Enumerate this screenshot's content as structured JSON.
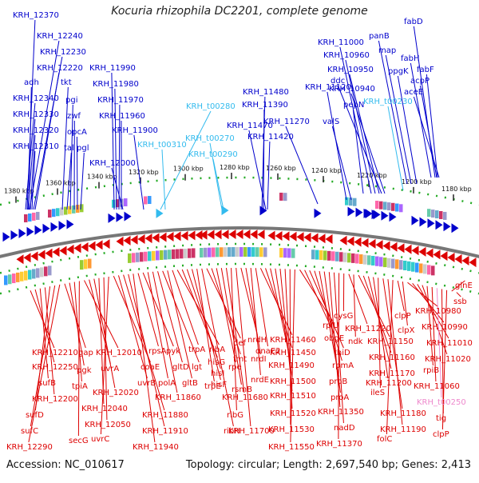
{
  "title": "Kocuria rhizophila DC2201, complete genome",
  "footer": {
    "accession": "Accession: NC_010617",
    "summary": "Topology: circular; Length: 2,697,540 bp; Genes: 2,413"
  },
  "colors": {
    "forward": "#0000cc",
    "reverse": "#dd0000",
    "rna": "#33bbee",
    "pink": "#ee88cc",
    "backbone": "#777777",
    "dots": "#22aa22"
  },
  "kbp_ticks": [
    "1380 kbp",
    "1360 kbp",
    "1340 kbp",
    "1320 kbp",
    "1300 kbp",
    "1280 kbp",
    "1260 kbp",
    "1240 kbp",
    "1220 kbp",
    "1200 kbp",
    "1180 kbp"
  ],
  "top_labels": [
    {
      "text": "KRH_12370",
      "color": "blue"
    },
    {
      "text": "KRH_12240",
      "color": "blue"
    },
    {
      "text": "KRH_12230",
      "color": "blue"
    },
    {
      "text": "KRH_12220",
      "color": "blue"
    },
    {
      "text": "adh",
      "color": "blue"
    },
    {
      "text": "tkt",
      "color": "blue"
    },
    {
      "text": "KRH_12340",
      "color": "blue"
    },
    {
      "text": "pgi",
      "color": "blue"
    },
    {
      "text": "KRH_12330",
      "color": "blue"
    },
    {
      "text": "zwf",
      "color": "blue"
    },
    {
      "text": "KRH_12320",
      "color": "blue"
    },
    {
      "text": "opcA",
      "color": "blue"
    },
    {
      "text": "KRH_12310",
      "color": "blue"
    },
    {
      "text": "tal",
      "color": "blue"
    },
    {
      "text": "pgl",
      "color": "blue"
    },
    {
      "text": "KRH_11990",
      "color": "blue"
    },
    {
      "text": "KRH_11980",
      "color": "blue"
    },
    {
      "text": "KRH_11970",
      "color": "blue"
    },
    {
      "text": "KRH_11960",
      "color": "blue"
    },
    {
      "text": "KRH_11900",
      "color": "blue"
    },
    {
      "text": "KRH_12000",
      "color": "blue"
    },
    {
      "text": "KRH_t00280",
      "color": "rna"
    },
    {
      "text": "KRH_t00310",
      "color": "rna"
    },
    {
      "text": "KRH_t00270",
      "color": "rna"
    },
    {
      "text": "KRH_t00290",
      "color": "rna"
    },
    {
      "text": "KRH_11480",
      "color": "blue"
    },
    {
      "text": "KRH_11390",
      "color": "blue"
    },
    {
      "text": "KRH_11470",
      "color": "blue"
    },
    {
      "text": "KRH_11420",
      "color": "blue"
    },
    {
      "text": "KRH_11270",
      "color": "blue"
    },
    {
      "text": "valS",
      "color": "blue"
    },
    {
      "text": "KRH_11120",
      "color": "blue"
    },
    {
      "text": "pepN",
      "color": "blue"
    },
    {
      "text": "KRH_11000",
      "color": "blue"
    },
    {
      "text": "KRH_10960",
      "color": "blue"
    },
    {
      "text": "KRH_10950",
      "color": "blue"
    },
    {
      "text": "ddc",
      "color": "blue"
    },
    {
      "text": "KRH_10940",
      "color": "blue"
    },
    {
      "text": "KRH_t00230",
      "color": "rna"
    },
    {
      "text": "panB",
      "color": "blue"
    },
    {
      "text": "map",
      "color": "blue"
    },
    {
      "text": "ppgK",
      "color": "blue"
    },
    {
      "text": "fabD",
      "color": "blue"
    },
    {
      "text": "fabH",
      "color": "blue"
    },
    {
      "text": "fabF",
      "color": "blue"
    },
    {
      "text": "acpP",
      "color": "blue"
    },
    {
      "text": "aceE",
      "color": "blue"
    }
  ],
  "bottom_labels": [
    {
      "text": "KRH_12210",
      "color": "red"
    },
    {
      "text": "KRH_12250",
      "color": "red"
    },
    {
      "text": "sufB",
      "color": "red"
    },
    {
      "text": "KRH_12200",
      "color": "red"
    },
    {
      "text": "sufD",
      "color": "red"
    },
    {
      "text": "sufC",
      "color": "red"
    },
    {
      "text": "KRH_12290",
      "color": "red"
    },
    {
      "text": "gap",
      "color": "red"
    },
    {
      "text": "pgk",
      "color": "red"
    },
    {
      "text": "tpiA",
      "color": "red"
    },
    {
      "text": "secG",
      "color": "red"
    },
    {
      "text": "KRH_12010",
      "color": "red"
    },
    {
      "text": "uvrA",
      "color": "red"
    },
    {
      "text": "KRH_12020",
      "color": "red"
    },
    {
      "text": "KRH_12040",
      "color": "red"
    },
    {
      "text": "KRH_12050",
      "color": "red"
    },
    {
      "text": "uvrC",
      "color": "red"
    },
    {
      "text": "coaE",
      "color": "red"
    },
    {
      "text": "uvrB",
      "color": "red"
    },
    {
      "text": "KRH_11880",
      "color": "red"
    },
    {
      "text": "KRH_11910",
      "color": "red"
    },
    {
      "text": "KRH_11940",
      "color": "red"
    },
    {
      "text": "rpsA",
      "color": "red"
    },
    {
      "text": "pyk",
      "color": "red"
    },
    {
      "text": "polA",
      "color": "red"
    },
    {
      "text": "KRH_11860",
      "color": "red"
    },
    {
      "text": "gltD",
      "color": "red"
    },
    {
      "text": "lgt",
      "color": "red"
    },
    {
      "text": "gltB",
      "color": "red"
    },
    {
      "text": "trpA",
      "color": "red"
    },
    {
      "text": "ribA",
      "color": "red"
    },
    {
      "text": "hisG",
      "color": "red"
    },
    {
      "text": "hisI",
      "color": "red"
    },
    {
      "text": "hisF",
      "color": "red"
    },
    {
      "text": "trpE",
      "color": "red"
    },
    {
      "text": "ribH",
      "color": "red"
    },
    {
      "text": "def",
      "color": "red"
    },
    {
      "text": "fmt",
      "color": "red"
    },
    {
      "text": "rpe",
      "color": "red"
    },
    {
      "text": "rsmB",
      "color": "red"
    },
    {
      "text": "KRH_11680",
      "color": "red"
    },
    {
      "text": "ribG",
      "color": "red"
    },
    {
      "text": "KRH_11700",
      "color": "red"
    },
    {
      "text": "nrdH",
      "color": "red"
    },
    {
      "text": "nrdI",
      "color": "red"
    },
    {
      "text": "nrdE",
      "color": "red"
    },
    {
      "text": "dnaE2",
      "color": "red"
    },
    {
      "text": "KRH_11460",
      "color": "red"
    },
    {
      "text": "KRH_11450",
      "color": "red"
    },
    {
      "text": "KRH_11490",
      "color": "red"
    },
    {
      "text": "KRH_11500",
      "color": "red"
    },
    {
      "text": "KRH_11510",
      "color": "red"
    },
    {
      "text": "KRH_11520",
      "color": "red"
    },
    {
      "text": "KRH_11530",
      "color": "red"
    },
    {
      "text": "KRH_11550",
      "color": "red"
    },
    {
      "text": "rplU",
      "color": "red"
    },
    {
      "text": "obgE",
      "color": "red"
    },
    {
      "text": "thiD",
      "color": "red"
    },
    {
      "text": "rpmA",
      "color": "red"
    },
    {
      "text": "proB",
      "color": "red"
    },
    {
      "text": "proA",
      "color": "red"
    },
    {
      "text": "KRH_11350",
      "color": "red"
    },
    {
      "text": "nadD",
      "color": "red"
    },
    {
      "text": "KRH_11370",
      "color": "red"
    },
    {
      "text": "cysG",
      "color": "red"
    },
    {
      "text": "KRH_11220",
      "color": "red"
    },
    {
      "text": "ndk",
      "color": "red"
    },
    {
      "text": "KRH_11150",
      "color": "red"
    },
    {
      "text": "KRH_11160",
      "color": "red"
    },
    {
      "text": "KRH_11170",
      "color": "red"
    },
    {
      "text": "KRH_11200",
      "color": "red"
    },
    {
      "text": "ileS",
      "color": "red"
    },
    {
      "text": "KRH_11180",
      "color": "red"
    },
    {
      "text": "KRH_11190",
      "color": "red"
    },
    {
      "text": "folC",
      "color": "red"
    },
    {
      "text": "clpP",
      "color": "red"
    },
    {
      "text": "clpX",
      "color": "red"
    },
    {
      "text": "KRH_10980",
      "color": "red"
    },
    {
      "text": "KRH_10990",
      "color": "red"
    },
    {
      "text": "KRH_11010",
      "color": "red"
    },
    {
      "text": "KRH_11020",
      "color": "red"
    },
    {
      "text": "rpiB",
      "color": "red"
    },
    {
      "text": "KRH_11060",
      "color": "red"
    },
    {
      "text": "KRH_t00250",
      "color": "pink"
    },
    {
      "text": "tig",
      "color": "red"
    },
    {
      "text": "clpP",
      "color": "red"
    },
    {
      "text": "glnE",
      "color": "red"
    },
    {
      "text": "ssb",
      "color": "red"
    }
  ]
}
